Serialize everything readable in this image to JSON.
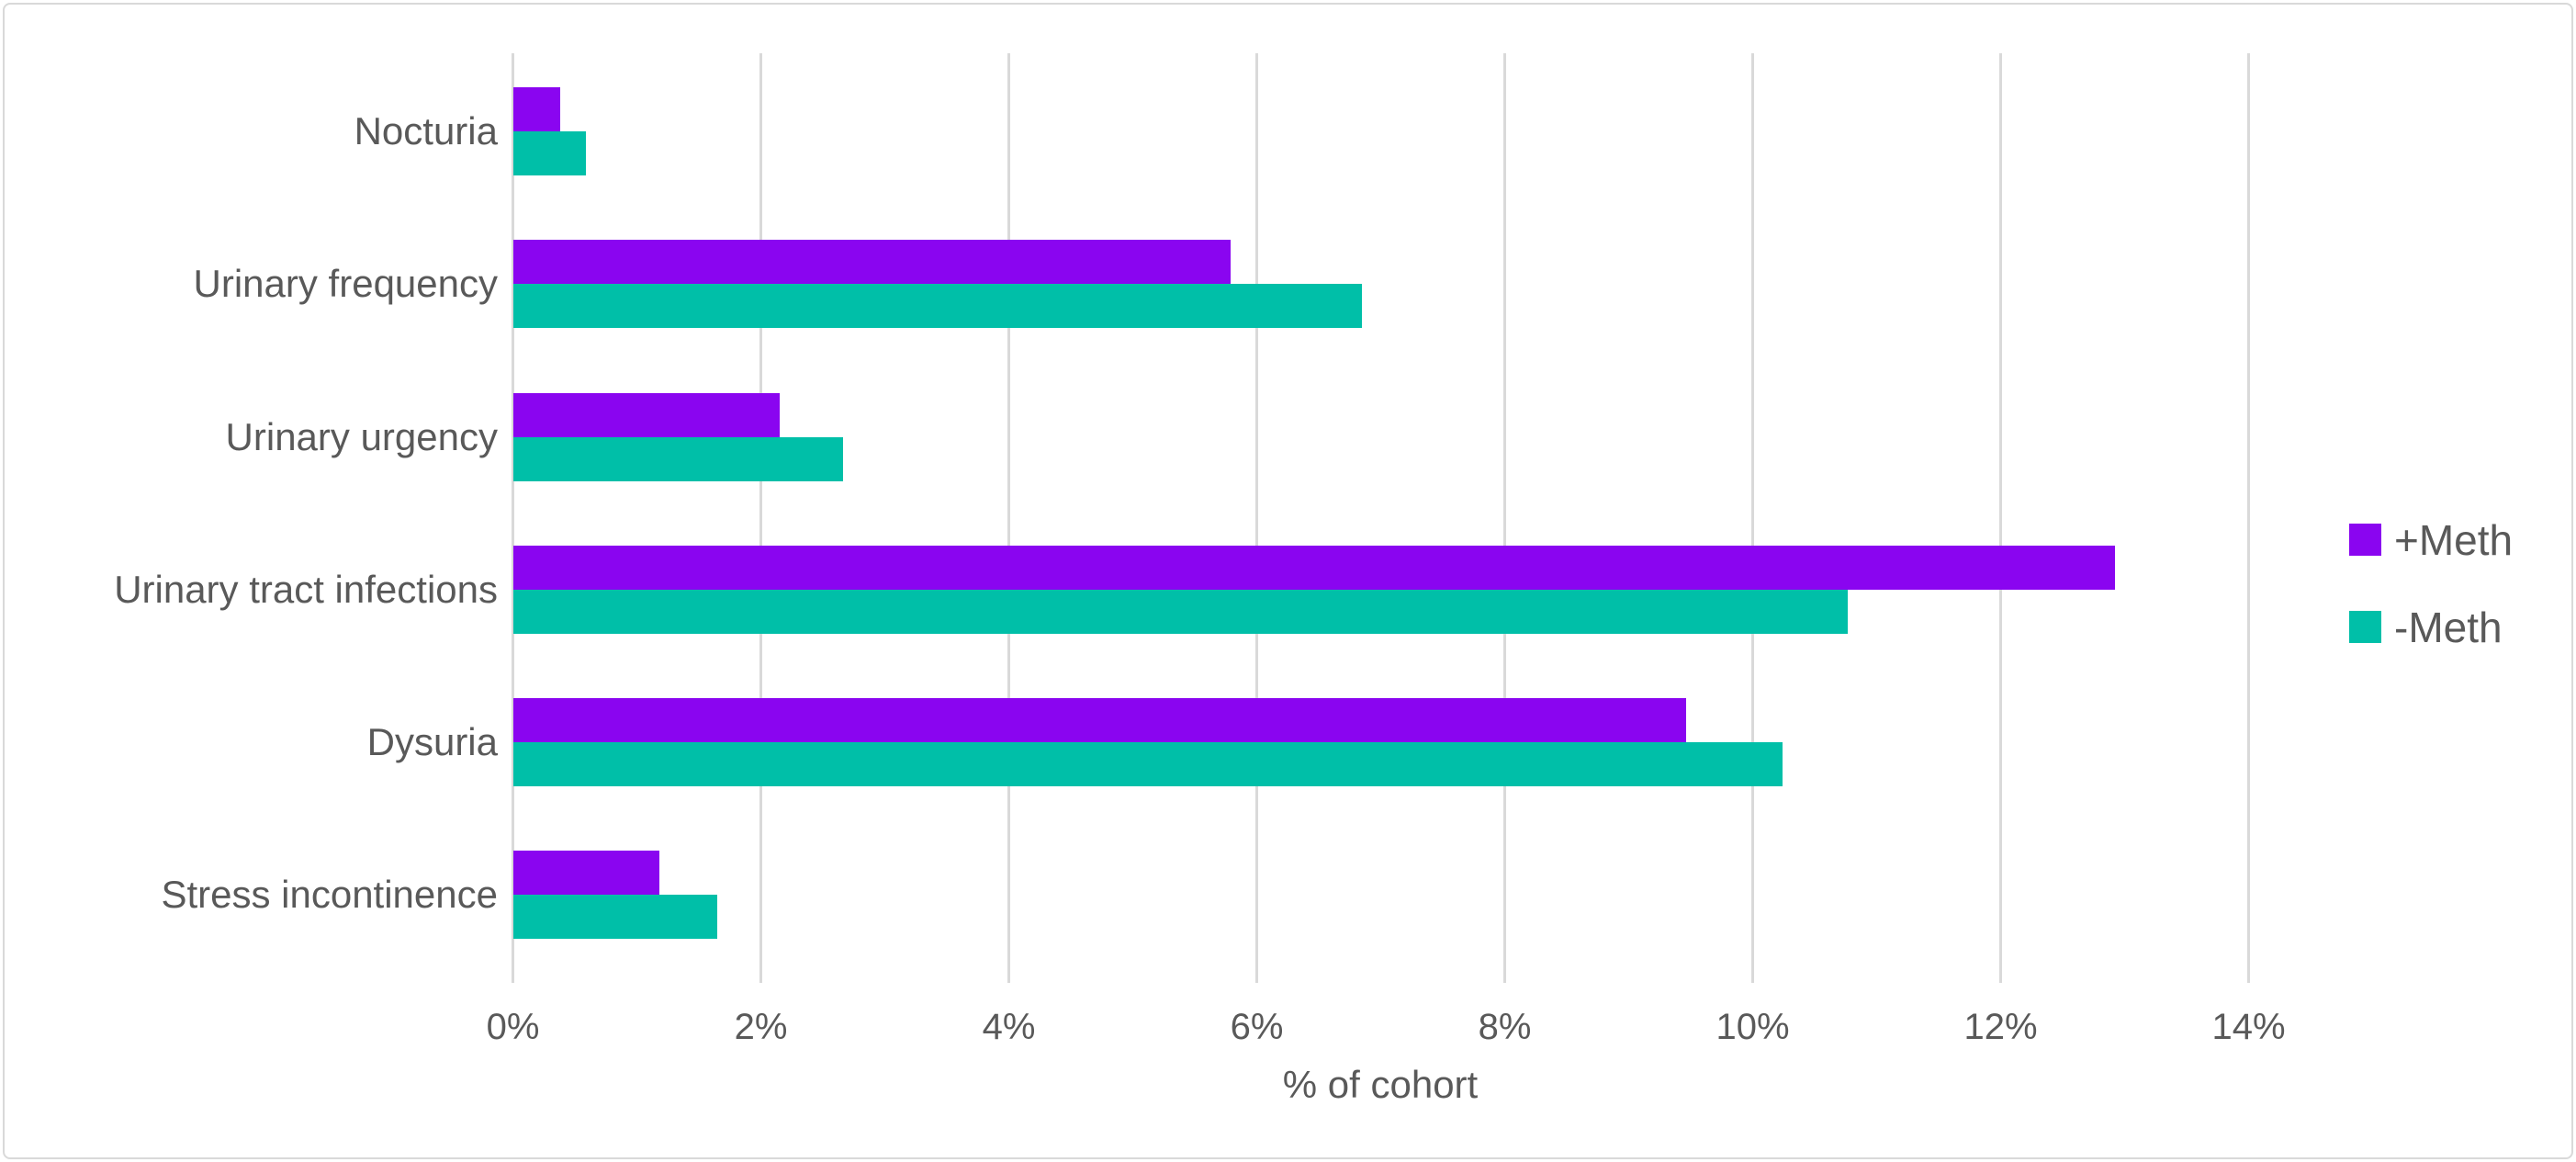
{
  "frame": {
    "background": "#FFFFFF",
    "border_color": "#D9D9D9"
  },
  "chart_data": {
    "type": "bar",
    "orientation": "horizontal",
    "title": "",
    "xlabel": "% of cohort",
    "ylabel": "",
    "categories": [
      "Nocturia",
      "Urinary frequency",
      "Urinary urgency",
      "Urinary tract infections",
      "Dysuria",
      "Stress incontinence"
    ],
    "series": [
      {
        "name": "+Meth",
        "color": "#8A05F0",
        "values": [
          0.38,
          5.79,
          2.15,
          12.92,
          9.46,
          1.18
        ]
      },
      {
        "name": "-Meth",
        "color": "#00BFA8",
        "values": [
          0.59,
          6.85,
          2.66,
          10.77,
          10.24,
          1.65
        ]
      }
    ],
    "x_ticks": [
      {
        "value": 0,
        "label": "0%"
      },
      {
        "value": 2,
        "label": "2%"
      },
      {
        "value": 4,
        "label": "4%"
      },
      {
        "value": 6,
        "label": "6%"
      },
      {
        "value": 8,
        "label": "8%"
      },
      {
        "value": 10,
        "label": "10%"
      },
      {
        "value": 12,
        "label": "12%"
      },
      {
        "value": 14,
        "label": "14%"
      }
    ],
    "xlim": [
      0,
      14
    ],
    "grid": "vertical",
    "gridline_color": "#D9D9D9",
    "text_color": "#595959",
    "legend_position": "right"
  }
}
